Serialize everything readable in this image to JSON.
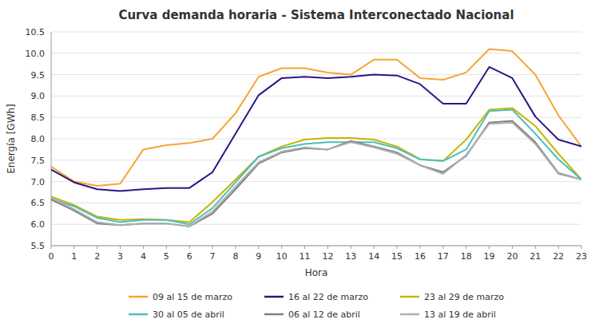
{
  "chart_data": {
    "type": "line",
    "title": "Curva demanda horaria - Sistema Interconectado Nacional",
    "xlabel": "Hora",
    "ylabel": "Energía [GWh]",
    "x": [
      0,
      1,
      2,
      3,
      4,
      5,
      6,
      7,
      8,
      9,
      10,
      11,
      12,
      13,
      14,
      15,
      16,
      17,
      18,
      19,
      20,
      21,
      22,
      23
    ],
    "xlim": [
      0,
      23
    ],
    "xticks": [
      0,
      1,
      2,
      3,
      4,
      5,
      6,
      7,
      8,
      9,
      10,
      11,
      12,
      13,
      14,
      15,
      16,
      17,
      18,
      19,
      20,
      21,
      22,
      23
    ],
    "ylim": [
      5.5,
      10.5
    ],
    "yticks": [
      5.5,
      {
        "value": 6,
        "label": "6.0"
      },
      6.5,
      {
        "value": 7,
        "label": "7.0"
      },
      7.5,
      {
        "value": 8,
        "label": "8.0"
      },
      8.5,
      {
        "value": 9,
        "label": "9.0"
      },
      9.5,
      {
        "value": 10,
        "label": "10.0"
      },
      10.5
    ],
    "grid": true,
    "legend": "bottom",
    "series": [
      {
        "name": "09 al 15 de marzo",
        "color": "#F4A535",
        "values": [
          7.35,
          7.0,
          6.9,
          6.95,
          7.75,
          7.85,
          7.9,
          8.0,
          8.6,
          9.45,
          9.65,
          9.65,
          9.55,
          9.5,
          9.85,
          9.85,
          9.42,
          9.38,
          9.55,
          10.1,
          10.05,
          9.5,
          8.55,
          7.82
        ]
      },
      {
        "name": "16 al 22 de marzo",
        "color": "#2E1585",
        "values": [
          7.28,
          6.98,
          6.82,
          6.78,
          6.82,
          6.85,
          6.85,
          7.22,
          8.12,
          9.02,
          9.42,
          9.45,
          9.42,
          9.45,
          9.5,
          9.48,
          9.28,
          8.82,
          8.82,
          9.68,
          9.42,
          8.52,
          7.98,
          7.82
        ]
      },
      {
        "name": "23 al 29 de marzo",
        "color": "#C8B400",
        "values": [
          6.65,
          6.45,
          6.18,
          6.1,
          6.12,
          6.1,
          6.05,
          6.52,
          7.05,
          7.58,
          7.82,
          7.98,
          8.02,
          8.02,
          7.98,
          7.82,
          7.52,
          7.48,
          7.98,
          8.68,
          8.72,
          8.3,
          7.65,
          7.05
        ]
      },
      {
        "name": "30 al 05 de abril",
        "color": "#4BBFBF",
        "values": [
          6.6,
          6.42,
          6.15,
          6.05,
          6.1,
          6.1,
          6.0,
          6.38,
          6.98,
          7.58,
          7.78,
          7.88,
          7.92,
          7.92,
          7.92,
          7.78,
          7.52,
          7.48,
          7.75,
          8.65,
          8.68,
          8.12,
          7.52,
          7.05
        ]
      },
      {
        "name": "06 al 12 de abril",
        "color": "#808080",
        "values": [
          6.58,
          6.32,
          6.02,
          5.98,
          6.02,
          6.02,
          5.95,
          6.25,
          6.82,
          7.42,
          7.68,
          7.78,
          7.75,
          7.95,
          7.82,
          7.68,
          7.38,
          7.22,
          7.6,
          8.38,
          8.42,
          7.92,
          7.2,
          7.05
        ]
      },
      {
        "name": "13 al 19 de abril",
        "color": "#AFAFAF",
        "values": [
          6.62,
          6.35,
          6.05,
          5.98,
          6.02,
          6.02,
          5.95,
          6.3,
          6.88,
          7.45,
          7.7,
          7.8,
          7.75,
          7.92,
          7.8,
          7.65,
          7.38,
          7.18,
          7.62,
          8.35,
          8.38,
          7.88,
          7.18,
          7.05
        ]
      }
    ]
  }
}
